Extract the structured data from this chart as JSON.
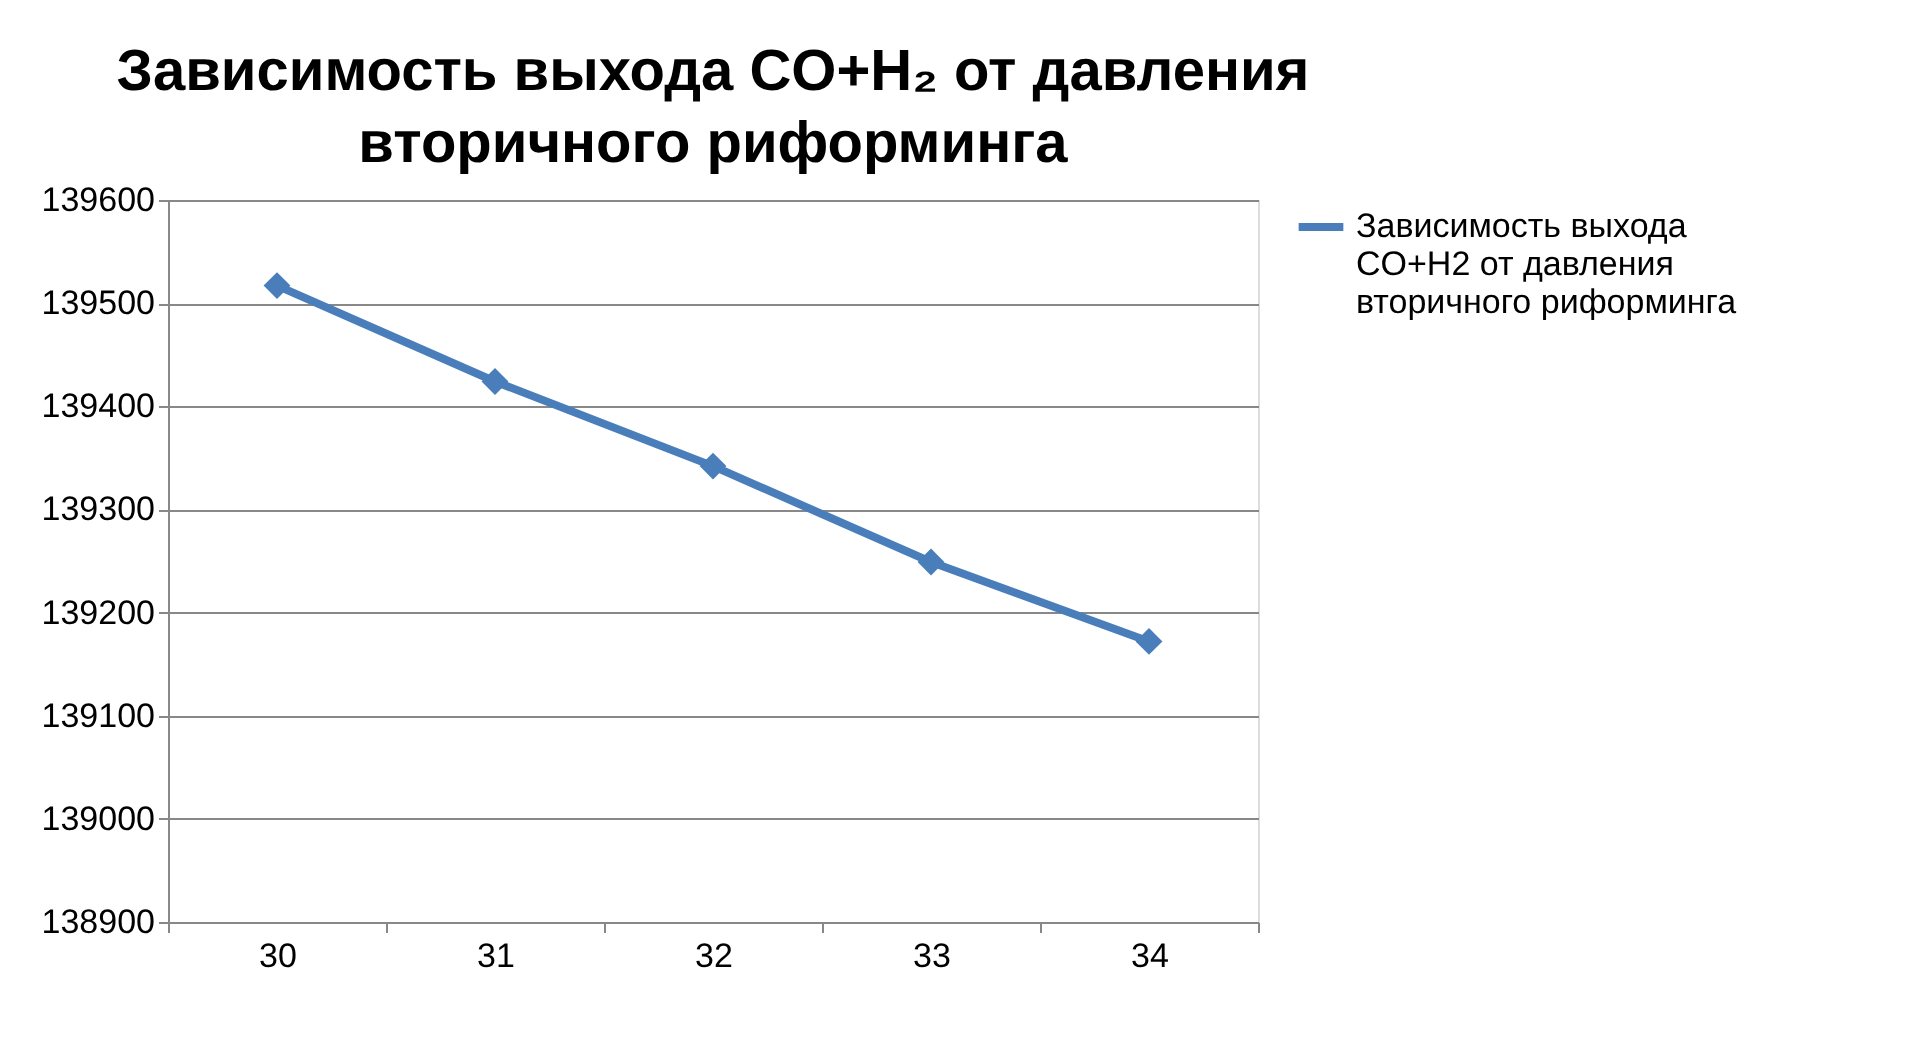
{
  "chart_data": {
    "type": "line",
    "title": "Зависимость выхода CO+H₂ от давления вторичного риформинга",
    "categories": [
      "30",
      "31",
      "32",
      "33",
      "34"
    ],
    "series": [
      {
        "name": "Зависимость выхода CO+H2 от давления вторичного риформинга",
        "color": "#4a7ebb",
        "values": [
          139517,
          139424,
          139342,
          139249,
          139172
        ]
      }
    ],
    "ylim": [
      138900,
      139600
    ],
    "yticks": [
      138900,
      139000,
      139100,
      139200,
      139300,
      139400,
      139500,
      139600
    ],
    "grid": "y",
    "legend": "right",
    "marker": "diamond",
    "line_style": "solid"
  }
}
